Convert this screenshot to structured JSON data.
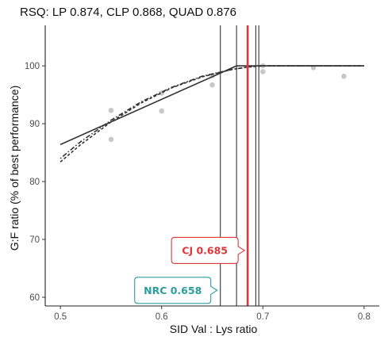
{
  "chart_data": {
    "type": "scatter",
    "title": "RSQ: LP 0.874, CLP 0.868, QUAD 0.876",
    "xlabel": "SID Val : Lys ratio",
    "ylabel": "G:F ratio (% of best performance)",
    "xlim": [
      0.485,
      0.815
    ],
    "ylim": [
      58.5,
      107
    ],
    "x_ticks": [
      0.5,
      0.6,
      0.7,
      0.8
    ],
    "y_ticks": [
      60,
      70,
      80,
      90,
      100
    ],
    "x_tick_labels": [
      "0.5",
      "0.6",
      "0.7",
      "0.8"
    ],
    "y_tick_labels": [
      "60",
      "70",
      "80",
      "90",
      "100"
    ],
    "grid": false,
    "points": [
      {
        "x": 0.55,
        "y": 92.3
      },
      {
        "x": 0.55,
        "y": 87.3
      },
      {
        "x": 0.6,
        "y": 95.3
      },
      {
        "x": 0.6,
        "y": 92.2
      },
      {
        "x": 0.65,
        "y": 98.3
      },
      {
        "x": 0.65,
        "y": 96.7
      },
      {
        "x": 0.7,
        "y": 100.0
      },
      {
        "x": 0.7,
        "y": 99.0
      },
      {
        "x": 0.75,
        "y": 99.7
      },
      {
        "x": 0.78,
        "y": 98.2
      }
    ],
    "series": [
      {
        "style": "solid",
        "x": [
          0.5,
          0.674,
          0.8
        ],
        "y": [
          86.4,
          100.0,
          100.0
        ]
      },
      {
        "style": "dashed",
        "x": [
          0.5,
          0.52,
          0.55,
          0.58,
          0.61,
          0.64,
          0.67,
          0.685,
          0.7,
          0.75,
          0.8
        ],
        "y": [
          83.4,
          86.4,
          90.3,
          93.6,
          96.2,
          98.1,
          99.4,
          99.8,
          100.0,
          100.0,
          100.0
        ]
      },
      {
        "style": "dotdash",
        "x": [
          0.5,
          0.52,
          0.55,
          0.58,
          0.61,
          0.64,
          0.67,
          0.693,
          0.75,
          0.8
        ],
        "y": [
          84.0,
          86.9,
          90.6,
          93.8,
          96.3,
          98.2,
          99.4,
          100.0,
          100.0,
          100.0
        ]
      }
    ],
    "vlines": [
      {
        "x": 0.658,
        "color": "#333333"
      },
      {
        "x": 0.674,
        "color": "#333333"
      },
      {
        "x": 0.693,
        "color": "#333333"
      },
      {
        "x": 0.696,
        "color": "#333333"
      },
      {
        "x": 0.685,
        "color": "#e0373b"
      }
    ],
    "annotations": [
      {
        "label": "CJ 0.685",
        "x": 0.685,
        "y": 68.1,
        "color": "#e0373b"
      },
      {
        "label": "NRC 0.658",
        "x": 0.658,
        "y": 61.2,
        "color": "#2a9d9f"
      }
    ],
    "colors": {
      "points": "#c8c8c8",
      "lines": "#333333",
      "cj": "#e0373b",
      "nrc": "#2a9d9f"
    }
  }
}
